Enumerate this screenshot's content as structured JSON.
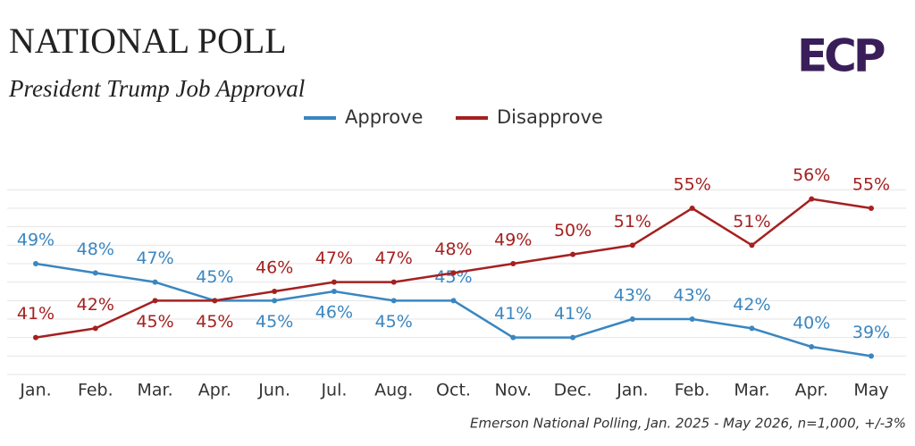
{
  "chart_data": {
    "type": "line",
    "title": "NATIONAL POLL",
    "subtitle": "President Trump Job Approval",
    "logo": "ECP",
    "source": "Emerson National Polling, Jan. 2025 - May 2026, n=1,000, +/-3%",
    "categories": [
      "Jan.",
      "Feb.",
      "Mar.",
      "Apr.",
      "Jun.",
      "Jul.",
      "Aug.",
      "Oct.",
      "Nov.",
      "Dec.",
      "Jan.",
      "Feb.",
      "Mar.",
      "Apr.",
      "May"
    ],
    "series": [
      {
        "name": "Approve",
        "color": "#3a86c0",
        "values": [
          49,
          48,
          47,
          45,
          45,
          46,
          45,
          45,
          41,
          41,
          43,
          43,
          42,
          40,
          39
        ],
        "value_labels": [
          "49%",
          "48%",
          "47%",
          "45%",
          "45%",
          "46%",
          "45%",
          "45%",
          "41%",
          "41%",
          "43%",
          "43%",
          "42%",
          "40%",
          "39%"
        ]
      },
      {
        "name": "Disapprove",
        "color": "#a52020",
        "values": [
          41,
          42,
          45,
          45,
          46,
          47,
          47,
          48,
          49,
          50,
          51,
          55,
          51,
          56,
          55
        ],
        "value_labels": [
          "41%",
          "42%",
          "45%",
          "45%",
          "46%",
          "47%",
          "47%",
          "48%",
          "49%",
          "50%",
          "51%",
          "55%",
          "51%",
          "56%",
          "55%"
        ]
      }
    ],
    "ylim": [
      37,
      58
    ],
    "yticks": [
      37,
      39,
      41,
      43,
      45,
      47,
      49,
      51,
      53,
      55,
      57
    ],
    "grid": true,
    "legend": "top"
  }
}
